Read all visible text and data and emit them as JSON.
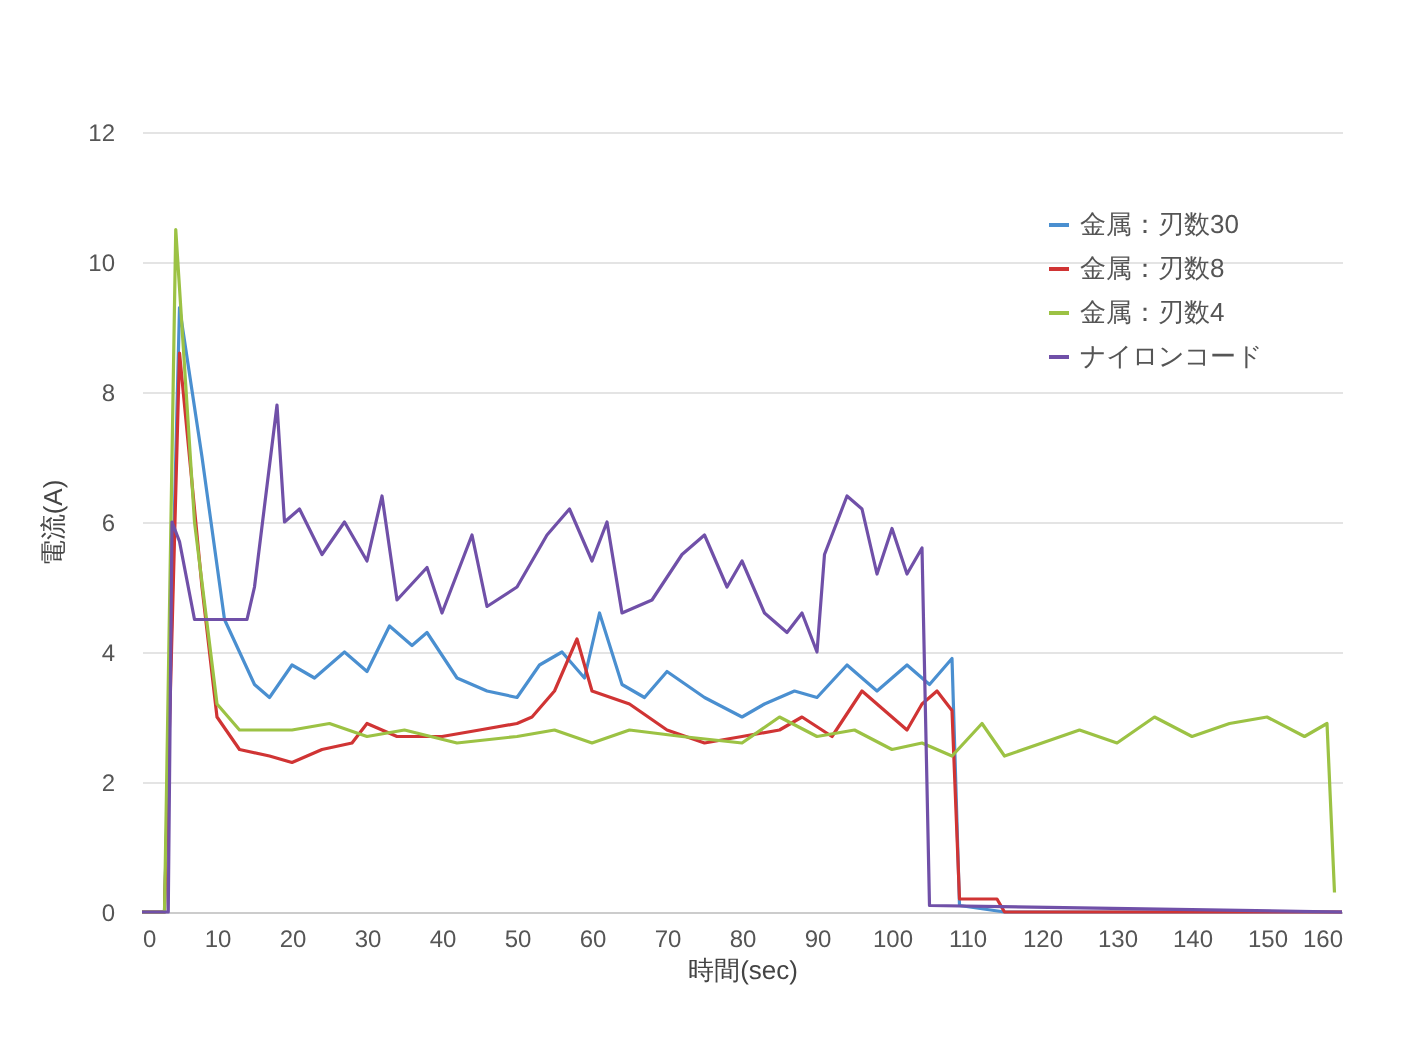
{
  "chart_data": {
    "type": "line",
    "xlabel": "時間(sec)",
    "ylabel": "電流(A)",
    "xlim": [
      0,
      160
    ],
    "xticks": [
      0,
      10,
      20,
      30,
      40,
      50,
      60,
      70,
      80,
      90,
      100,
      110,
      120,
      130,
      140,
      150,
      160
    ],
    "ylim": [
      0,
      12
    ],
    "yticks": [
      0,
      2,
      4,
      6,
      8,
      10,
      12
    ],
    "grid": "y",
    "legend": "top right",
    "marker": "none",
    "line_style": "solid",
    "series": [
      {
        "name": "金属：刃数30",
        "color": "#4a8fd0",
        "x": [
          0,
          3,
          5,
          8,
          11,
          15,
          17,
          20,
          23,
          27,
          30,
          33,
          36,
          38,
          42,
          46,
          50,
          53,
          56,
          59,
          61,
          64,
          67,
          70,
          75,
          80,
          83,
          87,
          90,
          94,
          98,
          102,
          105,
          108,
          109,
          115,
          160
        ],
        "values": [
          0,
          0,
          9.3,
          7,
          4.5,
          3.5,
          3.3,
          3.8,
          3.6,
          4.0,
          3.7,
          4.4,
          4.1,
          4.3,
          3.6,
          3.4,
          3.3,
          3.8,
          4.0,
          3.6,
          4.6,
          3.5,
          3.3,
          3.7,
          3.3,
          3.0,
          3.2,
          3.4,
          3.3,
          3.8,
          3.4,
          3.8,
          3.5,
          3.9,
          0.1,
          0,
          0
        ]
      },
      {
        "name": "金属：刃数8",
        "color": "#d03434",
        "x": [
          0,
          3,
          5,
          8,
          10,
          13,
          17,
          20,
          24,
          28,
          30,
          34,
          40,
          45,
          50,
          52,
          55,
          58,
          60,
          65,
          70,
          75,
          80,
          85,
          88,
          92,
          96,
          100,
          102,
          104,
          106,
          108,
          109,
          114,
          115,
          160
        ],
        "values": [
          0,
          0,
          8.6,
          5,
          3,
          2.5,
          2.4,
          2.3,
          2.5,
          2.6,
          2.9,
          2.7,
          2.7,
          2.8,
          2.9,
          3.0,
          3.4,
          4.2,
          3.4,
          3.2,
          2.8,
          2.6,
          2.7,
          2.8,
          3.0,
          2.7,
          3.4,
          3.0,
          2.8,
          3.2,
          3.4,
          3.1,
          0.2,
          0.2,
          0,
          0
        ]
      },
      {
        "name": "金属：刃数4",
        "color": "#9cc244",
        "x": [
          0,
          3,
          4.5,
          7,
          10,
          13,
          20,
          25,
          30,
          35,
          42,
          50,
          55,
          60,
          65,
          72,
          80,
          85,
          90,
          95,
          100,
          104,
          108,
          112,
          115,
          120,
          125,
          130,
          135,
          140,
          145,
          150,
          155,
          158,
          159
        ],
        "values": [
          0,
          0,
          10.5,
          6,
          3.2,
          2.8,
          2.8,
          2.9,
          2.7,
          2.8,
          2.6,
          2.7,
          2.8,
          2.6,
          2.8,
          2.7,
          2.6,
          3.0,
          2.7,
          2.8,
          2.5,
          2.6,
          2.4,
          2.9,
          2.4,
          2.6,
          2.8,
          2.6,
          3.0,
          2.7,
          2.9,
          3.0,
          2.7,
          2.9,
          0.3
        ]
      },
      {
        "name": "ナイロンコード",
        "color": "#7050a8",
        "x": [
          0,
          3.5,
          4,
          5,
          7,
          14,
          15,
          18,
          19,
          21,
          24,
          27,
          30,
          32,
          34,
          38,
          40,
          44,
          46,
          50,
          54,
          57,
          60,
          62,
          64,
          68,
          72,
          75,
          78,
          80,
          83,
          86,
          88,
          90,
          91,
          94,
          96,
          98,
          100,
          102,
          104,
          105,
          160
        ],
        "values": [
          0,
          0,
          6,
          5.7,
          4.5,
          4.5,
          5,
          7.8,
          6,
          6.2,
          5.5,
          6.0,
          5.4,
          6.4,
          4.8,
          5.3,
          4.6,
          5.8,
          4.7,
          5.0,
          5.8,
          6.2,
          5.4,
          6.0,
          4.6,
          4.8,
          5.5,
          5.8,
          5.0,
          5.4,
          4.6,
          4.3,
          4.6,
          4.0,
          5.5,
          6.4,
          6.2,
          5.2,
          5.9,
          5.2,
          5.6,
          0.1,
          0
        ]
      }
    ]
  }
}
